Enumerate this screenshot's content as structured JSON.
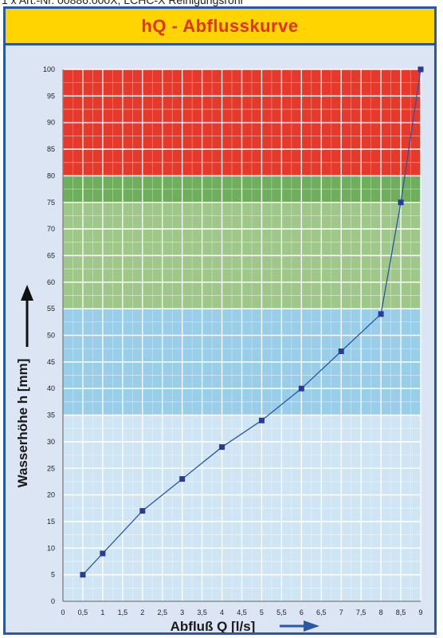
{
  "caption": "1 x Art.-Nr. 00886.000X, LCHC-X Reinigungsrohr",
  "title": "hQ - Abflusskurve",
  "colors": {
    "title_bg": "#ffd400",
    "title_text": "#e5301b",
    "frame": "#2a57a6",
    "zone_red": "#e5392b",
    "zone_green": "#9fc78a",
    "zone_green_dark": "#6fae5c",
    "zone_blue": "#99cde8",
    "zone_light_blue": "#cfe5f4",
    "line": "#2a57a6",
    "marker": "#2a3a9a"
  },
  "chart_data": {
    "type": "line",
    "xlabel": "Abfluß Q [l/s]",
    "ylabel": "Wasserhöhe h [mm]",
    "xlim": [
      0,
      9
    ],
    "ylim": [
      0,
      100
    ],
    "xticks": [
      "0",
      "0,5",
      "1",
      "1,5",
      "2",
      "2,5",
      "3",
      "3,5",
      "4",
      "4,5",
      "5",
      "5,5",
      "6",
      "6,5",
      "7",
      "7,5",
      "8",
      "8,5",
      "9"
    ],
    "yticks": [
      "0",
      "5",
      "10",
      "15",
      "20",
      "25",
      "30",
      "35",
      "40",
      "45",
      "50",
      "55",
      "60",
      "65",
      "70",
      "75",
      "80",
      "85",
      "90",
      "95",
      "100"
    ],
    "grid": true,
    "bands": [
      {
        "from": 0,
        "to": 35,
        "color": "light-blue"
      },
      {
        "from": 35,
        "to": 55,
        "color": "blue"
      },
      {
        "from": 55,
        "to": 80,
        "color": "green"
      },
      {
        "from": 80,
        "to": 100,
        "color": "red"
      }
    ],
    "series": [
      {
        "x": [
          0.5,
          1,
          2,
          3,
          4,
          5,
          6,
          7,
          8,
          8.5,
          9
        ],
        "y": [
          5,
          9,
          17,
          23,
          29,
          34,
          40,
          47,
          54,
          75,
          100
        ]
      }
    ]
  }
}
